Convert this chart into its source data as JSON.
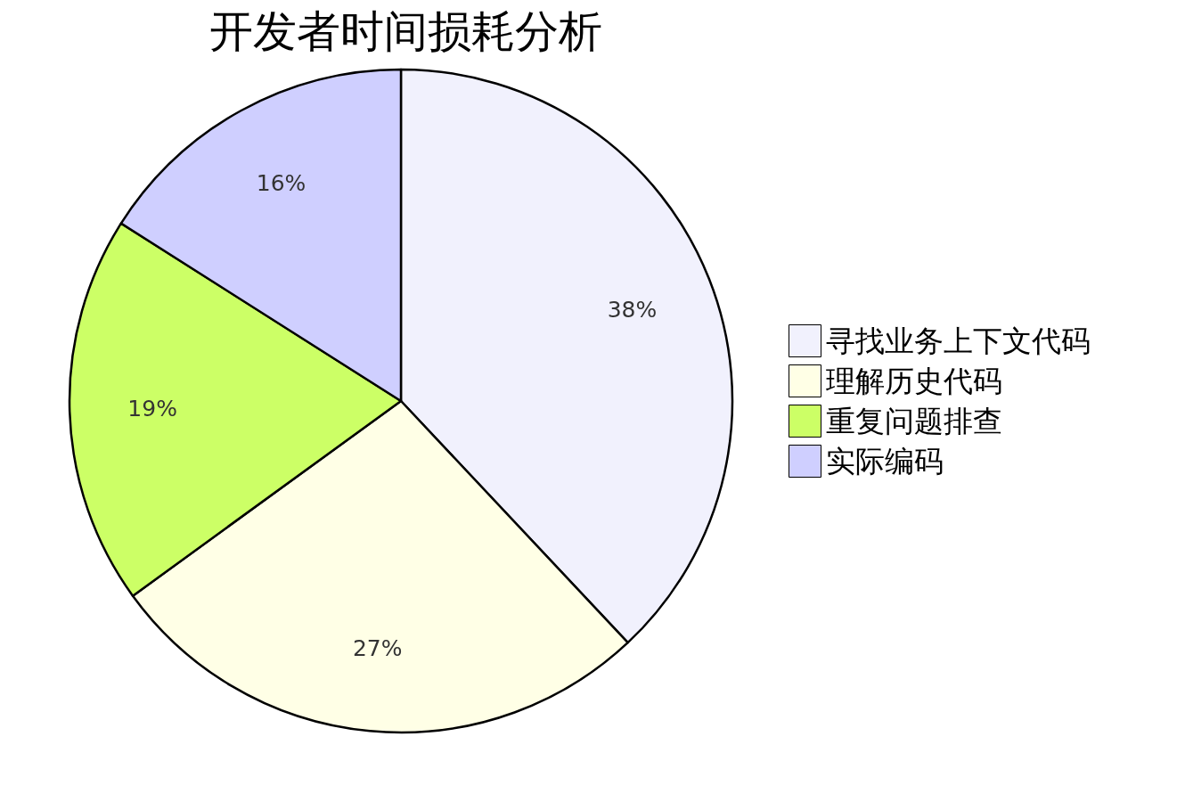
{
  "chart_data": {
    "type": "pie",
    "title": "开发者时间损耗分析",
    "categories": [
      "寻找业务上下文代码",
      "理解历史代码",
      "重复问题排查",
      "实际编码"
    ],
    "values": [
      38,
      27,
      19,
      16
    ],
    "value_labels": [
      "38%",
      "27%",
      "19%",
      "16%"
    ],
    "colors": [
      "#f1f1fd",
      "#ffffe6",
      "#ccff66",
      "#cfcfff"
    ],
    "legend": "right"
  }
}
